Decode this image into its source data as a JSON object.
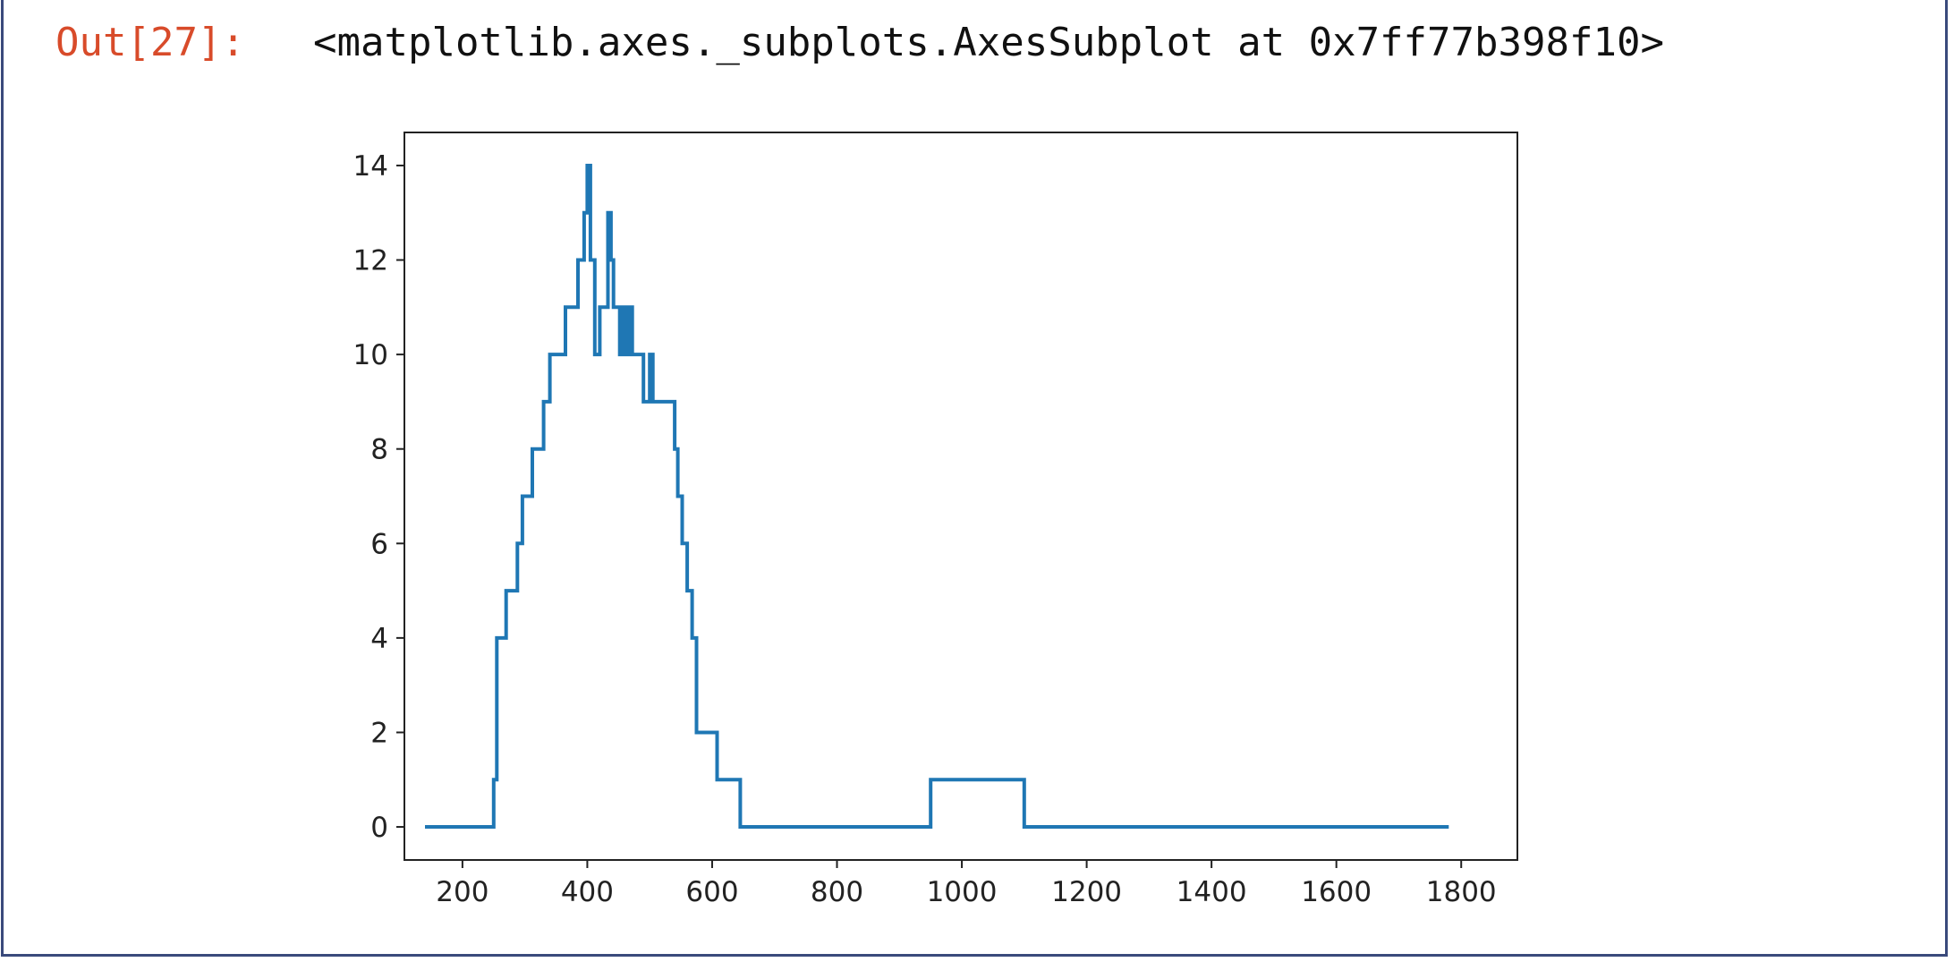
{
  "cell": {
    "prompt": "Out[27]:",
    "output_repr": "<matplotlib.axes._subplots.AxesSubplot at 0x7ff77b398f10>"
  },
  "chart_data": {
    "type": "line",
    "title": "",
    "xlabel": "",
    "ylabel": "",
    "xlim": [
      107,
      1890
    ],
    "ylim": [
      -0.7,
      14.7
    ],
    "x_ticks": [
      200,
      400,
      600,
      800,
      1000,
      1200,
      1400,
      1600,
      1800
    ],
    "y_ticks": [
      0,
      2,
      4,
      6,
      8,
      10,
      12,
      14
    ],
    "grid": false,
    "legend": "none",
    "step": true,
    "series": [
      {
        "color": "#1f77b4",
        "x": [
          140,
          250,
          255,
          262,
          270,
          280,
          288,
          296,
          304,
          312,
          322,
          330,
          340,
          356,
          365,
          378,
          385,
          390,
          395,
          400,
          405,
          412,
          420,
          428,
          433,
          438,
          442,
          448,
          452,
          457,
          462,
          467,
          472,
          480,
          490,
          495,
          500,
          505,
          512,
          520,
          530,
          540,
          545,
          552,
          560,
          568,
          575,
          582,
          608,
          645,
          950,
          1100,
          1780
        ],
        "y": [
          0,
          1,
          4,
          4,
          5,
          5,
          6,
          7,
          7,
          8,
          8,
          9,
          10,
          10,
          11,
          11,
          12,
          12,
          13,
          14,
          12,
          10,
          11,
          11,
          13,
          12,
          11,
          11,
          10,
          11,
          10,
          11,
          10,
          10,
          9,
          9,
          10,
          9,
          9,
          9,
          9,
          8,
          7,
          6,
          5,
          4,
          2,
          2,
          1,
          0,
          1,
          0,
          0
        ]
      }
    ]
  }
}
